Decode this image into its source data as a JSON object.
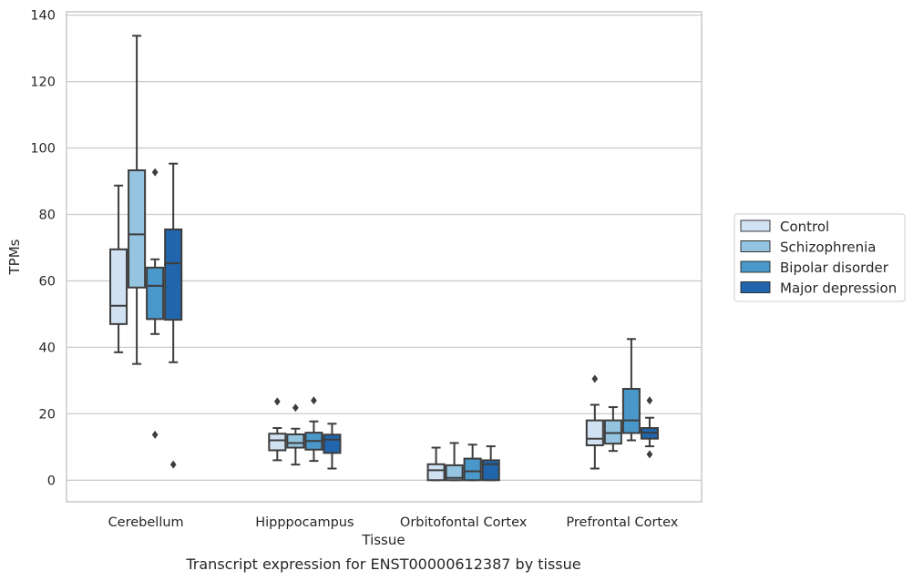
{
  "chart_data": {
    "type": "box",
    "xlabel": "Tissue",
    "ylabel": "TPMs",
    "caption": "Transcript expression for ENST00000612387 by tissue",
    "ylim": [
      -6.5,
      141
    ],
    "yticks": [
      0,
      20,
      40,
      60,
      80,
      100,
      120,
      140
    ],
    "grid": "horizontal",
    "legend_position": "right",
    "categories": [
      "Cerebellum",
      "Hipppocampus",
      "Orbitofontal Cortex",
      "Prefrontal Cortex"
    ],
    "series": [
      {
        "name": "Control",
        "color": "#d0e1f2",
        "boxes": [
          {
            "whisker_low": 38.5,
            "q1": 47,
            "median": 52.5,
            "q3": 69.5,
            "whisker_high": 88.7,
            "outliers": []
          },
          {
            "whisker_low": 6,
            "q1": 9,
            "median": 12,
            "q3": 14,
            "whisker_high": 15.7,
            "outliers": [
              23.7
            ]
          },
          {
            "whisker_low": 0,
            "q1": 0,
            "median": 3,
            "q3": 4.8,
            "whisker_high": 9.8,
            "outliers": []
          },
          {
            "whisker_low": 3.5,
            "q1": 10.5,
            "median": 12.5,
            "q3": 18,
            "whisker_high": 22.7,
            "outliers": [
              30.5
            ]
          }
        ]
      },
      {
        "name": "Schizophrenia",
        "color": "#94c4df",
        "boxes": [
          {
            "whisker_low": 35,
            "q1": 58,
            "median": 74,
            "q3": 93.3,
            "whisker_high": 133.8,
            "outliers": []
          },
          {
            "whisker_low": 4.7,
            "q1": 9.8,
            "median": 11.2,
            "q3": 13.8,
            "whisker_high": 15.5,
            "outliers": [
              21.8
            ]
          },
          {
            "whisker_low": 0,
            "q1": 0,
            "median": 0.7,
            "q3": 4.5,
            "whisker_high": 11.2,
            "outliers": []
          },
          {
            "whisker_low": 8.8,
            "q1": 11,
            "median": 14.2,
            "q3": 18,
            "whisker_high": 22,
            "outliers": []
          }
        ]
      },
      {
        "name": "Bipolar disorder",
        "color": "#4a98c9",
        "boxes": [
          {
            "whisker_low": 44,
            "q1": 48.5,
            "median": 58.5,
            "q3": 64,
            "whisker_high": 66.5,
            "outliers": [
              92.7,
              13.7
            ]
          },
          {
            "whisker_low": 5.8,
            "q1": 9.2,
            "median": 11.8,
            "q3": 14.3,
            "whisker_high": 17.7,
            "outliers": [
              24
            ]
          },
          {
            "whisker_low": 0,
            "q1": 0,
            "median": 2.7,
            "q3": 6.5,
            "whisker_high": 10.7,
            "outliers": []
          },
          {
            "whisker_low": 12,
            "q1": 14.2,
            "median": 18,
            "q3": 27.5,
            "whisker_high": 42.5,
            "outliers": []
          }
        ]
      },
      {
        "name": "Major depression",
        "color": "#2166ac",
        "boxes": [
          {
            "whisker_low": 35.5,
            "q1": 48.3,
            "median": 65.3,
            "q3": 75.5,
            "whisker_high": 95.3,
            "outliers": [
              4.7
            ]
          },
          {
            "whisker_low": 3.5,
            "q1": 8.2,
            "median": 12.2,
            "q3": 13.7,
            "whisker_high": 17,
            "outliers": []
          },
          {
            "whisker_low": 0,
            "q1": 0,
            "median": 4.8,
            "q3": 6,
            "whisker_high": 10.2,
            "outliers": []
          },
          {
            "whisker_low": 10.2,
            "q1": 12.5,
            "median": 14.3,
            "q3": 15.7,
            "whisker_high": 18.8,
            "outliers": [
              24,
              7.8
            ]
          }
        ]
      }
    ]
  }
}
